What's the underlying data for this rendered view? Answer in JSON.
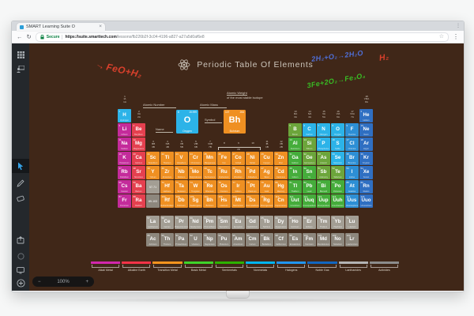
{
  "browser": {
    "tab_title": "SMART Learning Suite O",
    "tab_close": "×",
    "back": "←",
    "refresh": "↻",
    "secure_label": "Secure",
    "url_domain": "https://suite.smarttech.com",
    "url_path": "/lessons/fb226b2f-3c04-4196-a827-a27a5d0af6e8",
    "star": "☆",
    "menu": "⋮"
  },
  "sidebar": {
    "active_tool": "pointer",
    "accent": "#35a3e8",
    "tools": [
      "grid",
      "presenter",
      "pointer",
      "pen",
      "eraser",
      "embed",
      "record",
      "screen",
      "add"
    ]
  },
  "zoom": {
    "out": "−",
    "level": "100%",
    "in": "+"
  },
  "board": {
    "title": "Periodic Table Of Elements",
    "annotations": [
      {
        "id": "ann-feo",
        "arrow": "→",
        "text": "FeO+H₂",
        "color": "#d8402c"
      },
      {
        "id": "ann-blue",
        "arrow": "",
        "text": "2H₂+O₂→2H₂O",
        "color": "#4f6fd8"
      },
      {
        "id": "ann-h2",
        "arrow": "",
        "text": "H₂",
        "color": "#d8402c"
      },
      {
        "id": "ann-green",
        "arrow": "",
        "text": "3Fe+2O₂→Fe₃O₄",
        "color": "#39bb24"
      }
    ],
    "key": {
      "atomic_number_label": "Atomic Number",
      "atomic_mass_label": "Atomic Mass",
      "symbol_label": "Symbol",
      "name_label": "Name",
      "weight_note_1": "Atomic Weight",
      "weight_note_2": "of the most stable isotope",
      "oxygen": {
        "num": "8",
        "mass": "15.999",
        "sym": "O",
        "name": "Oxygen",
        "category": "nonmetal"
      },
      "bohrium": {
        "num": "107",
        "mass": "264",
        "sym": "Bh",
        "name": "Bohrium",
        "category": "transition"
      }
    },
    "category_colors": {
      "alkali": "#c42b9b",
      "alkaline": "#e5404f",
      "transition": "#ef9022",
      "basic": "#45ad3b",
      "semimetal": "#6ca53b",
      "nonmetal": "#2cb3e8",
      "halogen": "#2d8fd5",
      "noble": "#2f6fc2",
      "lanthanide": "#a39e94",
      "actinide": "#8d877d"
    },
    "group_labels": [
      {
        "c": 1,
        "band": "a",
        "lines": [
          "1",
          "IA",
          "1A"
        ]
      },
      {
        "c": 18,
        "band": "a",
        "lines": [
          "18",
          "VIIIA",
          "8A"
        ]
      },
      {
        "c": 2,
        "band": "b",
        "lines": [
          "2",
          "IIA",
          "2A"
        ]
      },
      {
        "c": 13,
        "band": "b",
        "lines": [
          "13",
          "IIIA",
          "3A"
        ]
      },
      {
        "c": 14,
        "band": "b",
        "lines": [
          "14",
          "IVA",
          "4A"
        ]
      },
      {
        "c": 15,
        "band": "b",
        "lines": [
          "15",
          "VA",
          "5A"
        ]
      },
      {
        "c": 16,
        "band": "b",
        "lines": [
          "16",
          "VIA",
          "6A"
        ]
      },
      {
        "c": 17,
        "band": "b",
        "lines": [
          "17",
          "VIIA",
          "7A"
        ]
      },
      {
        "c": 3,
        "band": "c",
        "lines": [
          "3",
          "IIIB",
          "3B"
        ]
      },
      {
        "c": 4,
        "band": "c",
        "lines": [
          "4",
          "IVB",
          "4B"
        ]
      },
      {
        "c": 5,
        "band": "c",
        "lines": [
          "5",
          "VB",
          "5B"
        ]
      },
      {
        "c": 6,
        "band": "c",
        "lines": [
          "6",
          "VIB",
          "6B"
        ]
      },
      {
        "c": 7,
        "band": "c",
        "lines": [
          "7",
          "VIIB",
          "7B"
        ]
      },
      {
        "c": 8,
        "band": "c",
        "lines": [
          "8"
        ]
      },
      {
        "c": 9,
        "band": "c",
        "lines": [
          "9"
        ]
      },
      {
        "c": 10,
        "band": "c",
        "lines": [
          "10"
        ]
      },
      {
        "c": 11,
        "band": "c",
        "lines": [
          "11",
          "IB",
          "1B"
        ]
      },
      {
        "c": 12,
        "band": "c",
        "lines": [
          "12",
          "IIB",
          "2B"
        ]
      }
    ],
    "viii_label": "VIII",
    "elements": [
      [
        1,
        1,
        1,
        "H",
        "Hydrogen",
        "nonmetal"
      ],
      [
        1,
        18,
        2,
        "He",
        "Helium",
        "noble"
      ],
      [
        2,
        1,
        3,
        "Li",
        "Lithium",
        "alkali"
      ],
      [
        2,
        2,
        4,
        "Be",
        "Beryllium",
        "alkaline"
      ],
      [
        2,
        13,
        5,
        "B",
        "Boron",
        "semimetal"
      ],
      [
        2,
        14,
        6,
        "C",
        "Carbon",
        "nonmetal"
      ],
      [
        2,
        15,
        7,
        "N",
        "Nitrogen",
        "nonmetal"
      ],
      [
        2,
        16,
        8,
        "O",
        "Oxygen",
        "nonmetal"
      ],
      [
        2,
        17,
        9,
        "F",
        "Fluorine",
        "halogen"
      ],
      [
        2,
        18,
        10,
        "Ne",
        "Neon",
        "noble"
      ],
      [
        3,
        1,
        11,
        "Na",
        "Sodium",
        "alkali"
      ],
      [
        3,
        2,
        12,
        "Mg",
        "Magnesium",
        "alkaline"
      ],
      [
        3,
        13,
        13,
        "Al",
        "Aluminum",
        "basic"
      ],
      [
        3,
        14,
        14,
        "Si",
        "Silicon",
        "semimetal"
      ],
      [
        3,
        15,
        15,
        "P",
        "Phosphorus",
        "nonmetal"
      ],
      [
        3,
        16,
        16,
        "S",
        "Sulfur",
        "nonmetal"
      ],
      [
        3,
        17,
        17,
        "Cl",
        "Chlorine",
        "halogen"
      ],
      [
        3,
        18,
        18,
        "Ar",
        "Argon",
        "noble"
      ],
      [
        4,
        1,
        19,
        "K",
        "Potassium",
        "alkali"
      ],
      [
        4,
        2,
        20,
        "Ca",
        "Calcium",
        "alkaline"
      ],
      [
        4,
        3,
        21,
        "Sc",
        "Scandium",
        "transition"
      ],
      [
        4,
        4,
        22,
        "Ti",
        "Titanium",
        "transition"
      ],
      [
        4,
        5,
        23,
        "V",
        "Vanadium",
        "transition"
      ],
      [
        4,
        6,
        24,
        "Cr",
        "Chromium",
        "transition"
      ],
      [
        4,
        7,
        25,
        "Mn",
        "Manganese",
        "transition"
      ],
      [
        4,
        8,
        26,
        "Fe",
        "Iron",
        "transition"
      ],
      [
        4,
        9,
        27,
        "Co",
        "Cobalt",
        "transition"
      ],
      [
        4,
        10,
        28,
        "Ni",
        "Nickel",
        "transition"
      ],
      [
        4,
        11,
        29,
        "Cu",
        "Copper",
        "transition"
      ],
      [
        4,
        12,
        30,
        "Zn",
        "Zinc",
        "transition"
      ],
      [
        4,
        13,
        31,
        "Ga",
        "Gallium",
        "basic"
      ],
      [
        4,
        14,
        32,
        "Ge",
        "Germanium",
        "semimetal"
      ],
      [
        4,
        15,
        33,
        "As",
        "Arsenic",
        "semimetal"
      ],
      [
        4,
        16,
        34,
        "Se",
        "Selenium",
        "nonmetal"
      ],
      [
        4,
        17,
        35,
        "Br",
        "Bromine",
        "halogen"
      ],
      [
        4,
        18,
        36,
        "Kr",
        "Krypton",
        "noble"
      ],
      [
        5,
        1,
        37,
        "Rb",
        "Rubidium",
        "alkali"
      ],
      [
        5,
        2,
        38,
        "Sr",
        "Strontium",
        "alkaline"
      ],
      [
        5,
        3,
        39,
        "Y",
        "Yttrium",
        "transition"
      ],
      [
        5,
        4,
        40,
        "Zr",
        "Zirconium",
        "transition"
      ],
      [
        5,
        5,
        41,
        "Nb",
        "Niobium",
        "transition"
      ],
      [
        5,
        6,
        42,
        "Mo",
        "Molybdenum",
        "transition"
      ],
      [
        5,
        7,
        43,
        "Tc",
        "Technetium",
        "transition"
      ],
      [
        5,
        8,
        44,
        "Ru",
        "Ruthenium",
        "transition"
      ],
      [
        5,
        9,
        45,
        "Rh",
        "Rhodium",
        "transition"
      ],
      [
        5,
        10,
        46,
        "Pd",
        "Palladium",
        "transition"
      ],
      [
        5,
        11,
        47,
        "Ag",
        "Silver",
        "transition"
      ],
      [
        5,
        12,
        48,
        "Cd",
        "Cadmium",
        "transition"
      ],
      [
        5,
        13,
        49,
        "In",
        "Indium",
        "basic"
      ],
      [
        5,
        14,
        50,
        "Sn",
        "Tin",
        "basic"
      ],
      [
        5,
        15,
        51,
        "Sb",
        "Antimony",
        "semimetal"
      ],
      [
        5,
        16,
        52,
        "Te",
        "Tellurium",
        "semimetal"
      ],
      [
        5,
        17,
        53,
        "I",
        "Iodine",
        "halogen"
      ],
      [
        5,
        18,
        54,
        "Xe",
        "Xenon",
        "noble"
      ],
      [
        6,
        1,
        55,
        "Cs",
        "Cesium",
        "alkali"
      ],
      [
        6,
        2,
        56,
        "Ba",
        "Barium",
        "alkaline"
      ],
      [
        6,
        4,
        72,
        "Hf",
        "Hafnium",
        "transition"
      ],
      [
        6,
        5,
        73,
        "Ta",
        "Tantalum",
        "transition"
      ],
      [
        6,
        6,
        74,
        "W",
        "Tungsten",
        "transition"
      ],
      [
        6,
        7,
        75,
        "Re",
        "Rhenium",
        "transition"
      ],
      [
        6,
        8,
        76,
        "Os",
        "Osmium",
        "transition"
      ],
      [
        6,
        9,
        77,
        "Ir",
        "Iridium",
        "transition"
      ],
      [
        6,
        10,
        78,
        "Pt",
        "Platinum",
        "transition"
      ],
      [
        6,
        11,
        79,
        "Au",
        "Gold",
        "transition"
      ],
      [
        6,
        12,
        80,
        "Hg",
        "Mercury",
        "transition"
      ],
      [
        6,
        13,
        81,
        "Tl",
        "Thallium",
        "basic"
      ],
      [
        6,
        14,
        82,
        "Pb",
        "Lead",
        "basic"
      ],
      [
        6,
        15,
        83,
        "Bi",
        "Bismuth",
        "basic"
      ],
      [
        6,
        16,
        84,
        "Po",
        "Polonium",
        "basic"
      ],
      [
        6,
        17,
        85,
        "At",
        "Astatine",
        "halogen"
      ],
      [
        6,
        18,
        86,
        "Rn",
        "Radon",
        "noble"
      ],
      [
        7,
        1,
        87,
        "Fr",
        "Francium",
        "alkali"
      ],
      [
        7,
        2,
        88,
        "Ra",
        "Radium",
        "alkaline"
      ],
      [
        7,
        4,
        104,
        "Rf",
        "Rutherfordium",
        "transition"
      ],
      [
        7,
        5,
        105,
        "Db",
        "Dubnium",
        "transition"
      ],
      [
        7,
        6,
        106,
        "Sg",
        "Seaborgium",
        "transition"
      ],
      [
        7,
        7,
        107,
        "Bh",
        "Bohrium",
        "transition"
      ],
      [
        7,
        8,
        108,
        "Hs",
        "Hassium",
        "transition"
      ],
      [
        7,
        9,
        109,
        "Mt",
        "Meitnerium",
        "transition"
      ],
      [
        7,
        10,
        110,
        "Ds",
        "Darmstadtium",
        "transition"
      ],
      [
        7,
        11,
        111,
        "Rg",
        "Roentgenium",
        "transition"
      ],
      [
        7,
        12,
        112,
        "Cn",
        "Copernicium",
        "transition"
      ],
      [
        7,
        13,
        113,
        "Uut",
        "Ununtrium",
        "basic"
      ],
      [
        7,
        14,
        114,
        "Uuq",
        "Ununquadium",
        "basic"
      ],
      [
        7,
        15,
        115,
        "Uup",
        "Ununpentium",
        "basic"
      ],
      [
        7,
        16,
        116,
        "Uuh",
        "Ununhexium",
        "basic"
      ],
      [
        7,
        17,
        117,
        "Uus",
        "Ununseptium",
        "halogen"
      ],
      [
        7,
        18,
        118,
        "Uuo",
        "Ununoctium",
        "noble"
      ]
    ],
    "placeholders": [
      {
        "row": 6,
        "col": 3,
        "label": "57-71",
        "category": "lanthanide"
      },
      {
        "row": 7,
        "col": 3,
        "label": "89-103",
        "category": "actinide"
      }
    ],
    "lanthanides": [
      [
        57,
        "La",
        "Lanthanum"
      ],
      [
        58,
        "Ce",
        "Cerium"
      ],
      [
        59,
        "Pr",
        "Praseodymium"
      ],
      [
        60,
        "Nd",
        "Neodymium"
      ],
      [
        61,
        "Pm",
        "Promethium"
      ],
      [
        62,
        "Sm",
        "Samarium"
      ],
      [
        63,
        "Eu",
        "Europium"
      ],
      [
        64,
        "Gd",
        "Gadolinium"
      ],
      [
        65,
        "Tb",
        "Terbium"
      ],
      [
        66,
        "Dy",
        "Dysprosium"
      ],
      [
        67,
        "Ho",
        "Holmium"
      ],
      [
        68,
        "Er",
        "Erbium"
      ],
      [
        69,
        "Tm",
        "Thulium"
      ],
      [
        70,
        "Yb",
        "Ytterbium"
      ],
      [
        71,
        "Lu",
        "Lutetium"
      ]
    ],
    "actinides": [
      [
        89,
        "Ac",
        "Actinium"
      ],
      [
        90,
        "Th",
        "Thorium"
      ],
      [
        91,
        "Pa",
        "Protactinium"
      ],
      [
        92,
        "U",
        "Uranium"
      ],
      [
        93,
        "Np",
        "Neptunium"
      ],
      [
        94,
        "Pu",
        "Plutonium"
      ],
      [
        95,
        "Am",
        "Americium"
      ],
      [
        96,
        "Cm",
        "Curium"
      ],
      [
        97,
        "Bk",
        "Berkelium"
      ],
      [
        98,
        "Cf",
        "Californium"
      ],
      [
        99,
        "Es",
        "Einsteinium"
      ],
      [
        100,
        "Fm",
        "Fermium"
      ],
      [
        101,
        "Md",
        "Mendelevium"
      ],
      [
        102,
        "No",
        "Nobelium"
      ],
      [
        103,
        "Lr",
        "Lawrencium"
      ]
    ],
    "legend": [
      {
        "label": "Alkali Metal",
        "color": "#d227ad"
      },
      {
        "label": "Alkaline Earth",
        "color": "#f43347"
      },
      {
        "label": "Transition Metal",
        "color": "#f7941e"
      },
      {
        "label": "Basic Metal",
        "color": "#3fd42a"
      },
      {
        "label": "Semimetals",
        "color": "#2db200"
      },
      {
        "label": "Nonmetals",
        "color": "#00b4f0"
      },
      {
        "label": "Halogens",
        "color": "#2196f3"
      },
      {
        "label": "Noble Gas",
        "color": "#1266c0"
      },
      {
        "label": "Lanthanides",
        "color": "#b3b3b3"
      },
      {
        "label": "Actinides",
        "color": "#8c8c8c"
      }
    ]
  }
}
